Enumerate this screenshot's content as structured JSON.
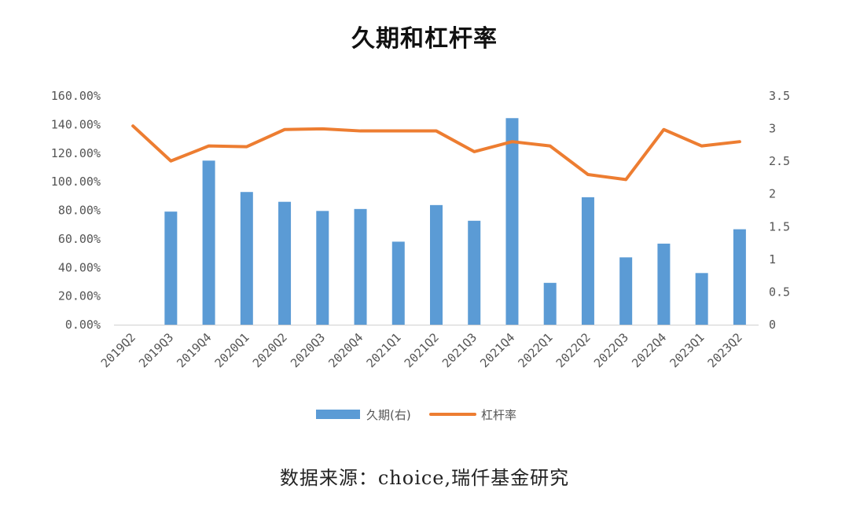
{
  "chart_data": {
    "type": "bar",
    "title": "久期和杠杆率",
    "categories": [
      "2019Q2",
      "2019Q3",
      "2019Q4",
      "2020Q1",
      "2020Q2",
      "2020Q3",
      "2020Q4",
      "2021Q1",
      "2021Q2",
      "2021Q3",
      "2021Q4",
      "2022Q1",
      "2022Q2",
      "2022Q3",
      "2022Q4",
      "2023Q1",
      "2023Q2"
    ],
    "left_axis": {
      "ticks": [
        "0.00%",
        "20.00%",
        "40.00%",
        "60.00%",
        "80.00%",
        "100.00%",
        "120.00%",
        "140.00%",
        "160.00%"
      ],
      "ylim": [
        0,
        160
      ]
    },
    "right_axis": {
      "ticks": [
        "0",
        "0.5",
        "1",
        "1.5",
        "2",
        "2.5",
        "3",
        "3.5"
      ],
      "ylim": [
        0,
        3.5
      ]
    },
    "series": [
      {
        "name": "久期(右)",
        "type": "bar",
        "axis": "right",
        "color": "#5b9bd5",
        "values": [
          null,
          1.73,
          2.51,
          2.03,
          1.88,
          1.74,
          1.77,
          1.27,
          1.83,
          1.59,
          3.16,
          0.64,
          1.95,
          1.03,
          1.24,
          0.79,
          1.46
        ]
      },
      {
        "name": "杠杆率",
        "type": "line",
        "axis": "left",
        "color": "#ed7d31",
        "values": [
          139,
          114.5,
          125,
          124.5,
          136.5,
          137,
          135.5,
          135.5,
          135.5,
          121,
          128,
          125,
          105,
          101.5,
          136.5,
          125,
          128
        ]
      }
    ],
    "grid": false,
    "legend_position": "bottom",
    "source": "数据来源：choice,瑞仟基金研究"
  }
}
